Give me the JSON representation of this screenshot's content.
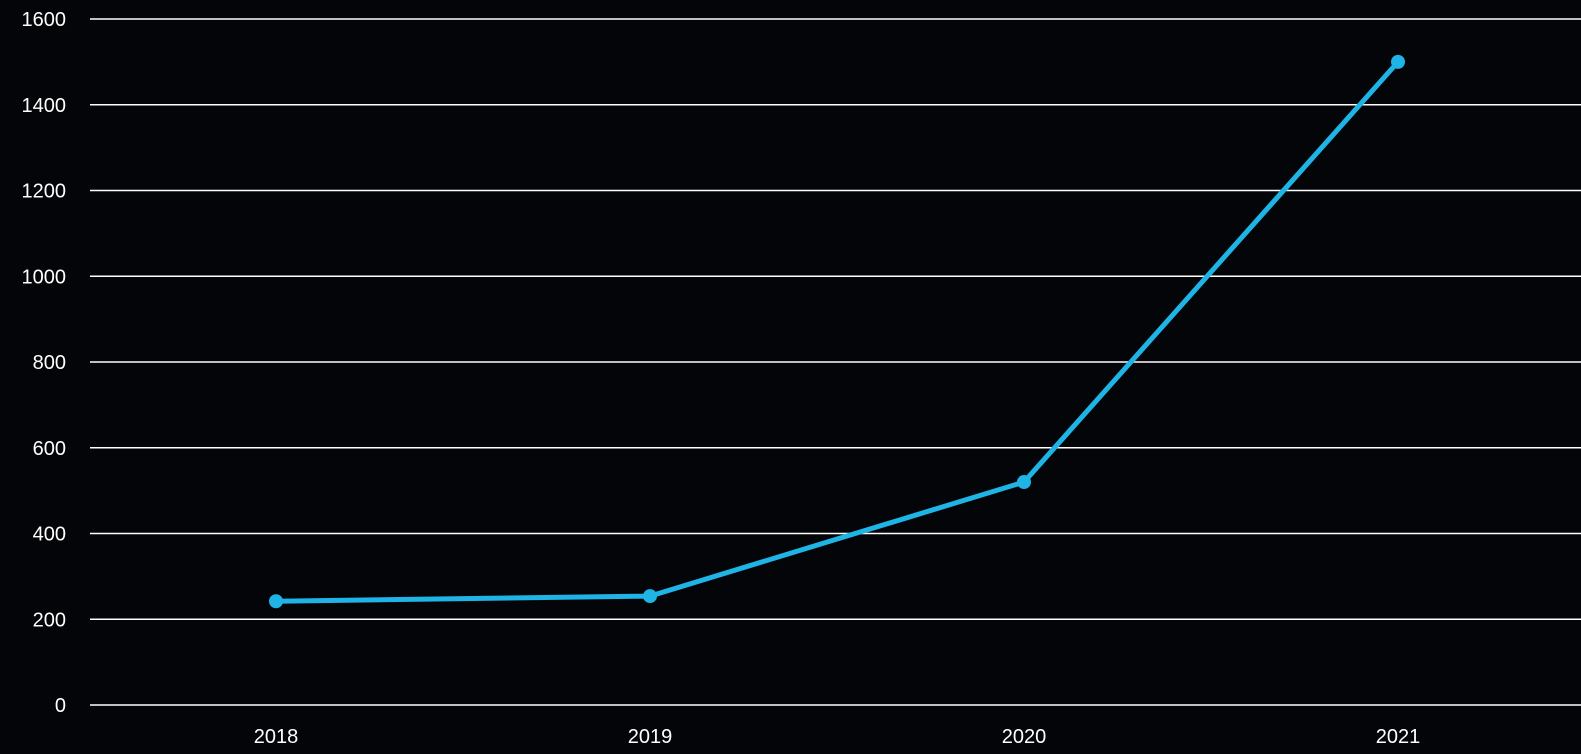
{
  "colors": {
    "background": "#040508",
    "gridline": "#ffffff",
    "series": "#1eb4e6",
    "text": "#ffffff"
  },
  "chart_data": {
    "type": "line",
    "title": "",
    "xlabel": "",
    "ylabel": "",
    "categories": [
      "2018",
      "2019",
      "2020",
      "2021"
    ],
    "series": [
      {
        "values": [
          242,
          254,
          520,
          1500
        ]
      }
    ],
    "ylim": [
      0,
      1600
    ],
    "yticks": [
      "0",
      "200",
      "400",
      "600",
      "800",
      "1000",
      "1200",
      "1400",
      "1600"
    ],
    "grid": true,
    "legend": "none"
  }
}
